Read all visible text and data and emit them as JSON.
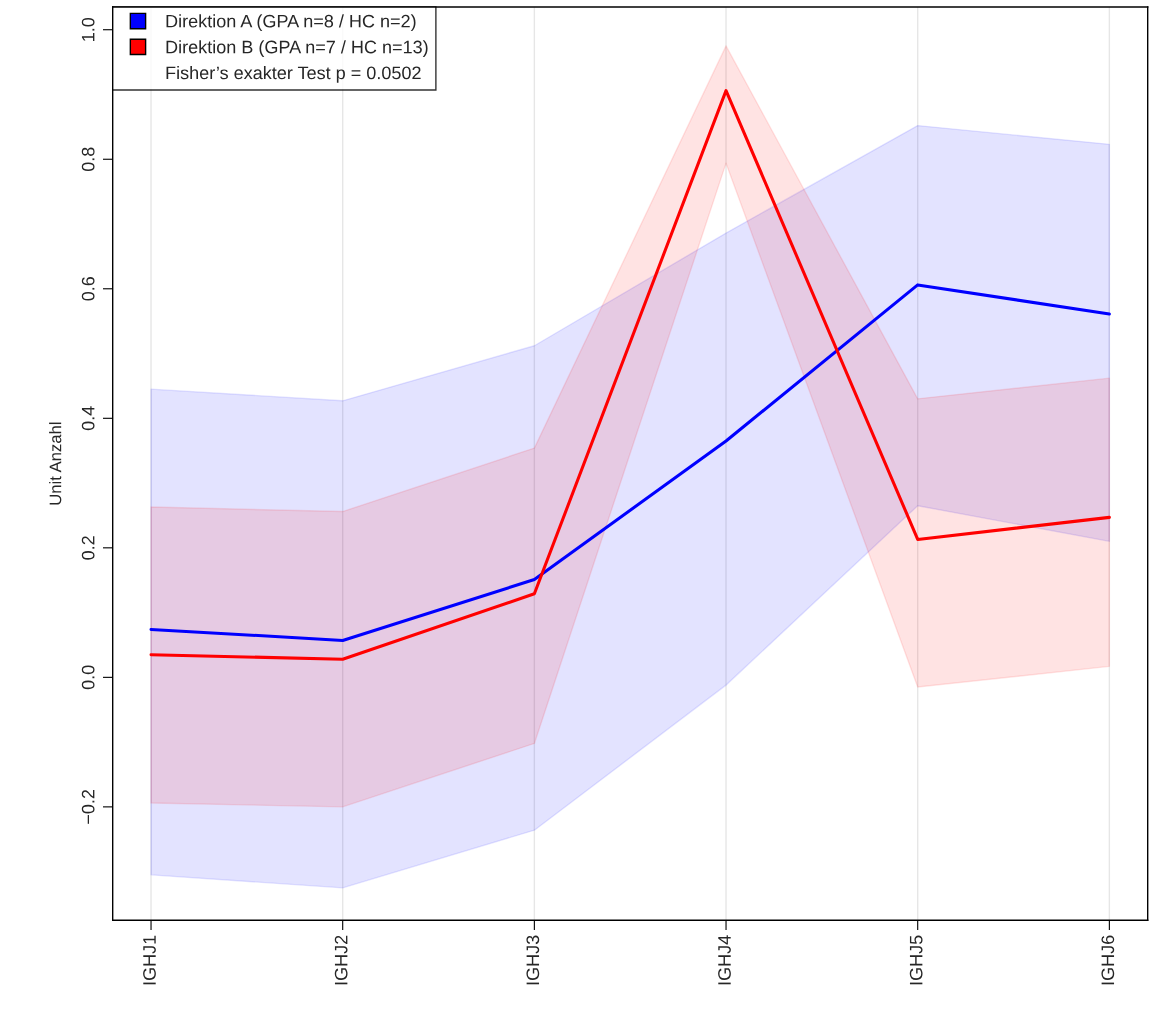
{
  "chart_data": {
    "type": "line",
    "ylabel": "Unit Anzahl",
    "categories": [
      "IGHJ1",
      "IGHJ2",
      "IGHJ3",
      "IGHJ4",
      "IGHJ5",
      "IGHJ6"
    ],
    "series": [
      {
        "name": "Direktion A (GPA n=8 / HC n=2)",
        "color": "#0000ff",
        "values": [
          0.074,
          0.057,
          0.151,
          0.365,
          0.606,
          0.561
        ],
        "lower": [
          -0.305,
          -0.325,
          -0.236,
          -0.012,
          0.265,
          0.21
        ],
        "upper": [
          0.445,
          0.427,
          0.512,
          0.686,
          0.852,
          0.823
        ]
      },
      {
        "name": "Direktion B (GPA n=7 / HC n=13)",
        "color": "#ff0000",
        "values": [
          0.035,
          0.028,
          0.129,
          0.906,
          0.213,
          0.247
        ],
        "lower": [
          -0.194,
          -0.2,
          -0.102,
          0.794,
          -0.015,
          0.017
        ],
        "upper": [
          0.263,
          0.256,
          0.354,
          0.975,
          0.43,
          0.462
        ]
      }
    ],
    "ylim": [
      -0.375,
      1.035
    ],
    "yticks": [
      {
        "value": -0.2,
        "label": "−0.2"
      },
      {
        "value": 0,
        "label": "0.0"
      },
      {
        "value": 0.2,
        "label": "0.2"
      },
      {
        "value": 0.4,
        "label": "0.4"
      },
      {
        "value": 0.6,
        "label": "0.6"
      },
      {
        "value": 0.8,
        "label": "0.8"
      },
      {
        "value": 1,
        "label": "1.0"
      }
    ],
    "grid": "x",
    "legend": "top left",
    "annotations": [
      "Fisher’s exakter Test p = 0.0502"
    ]
  }
}
